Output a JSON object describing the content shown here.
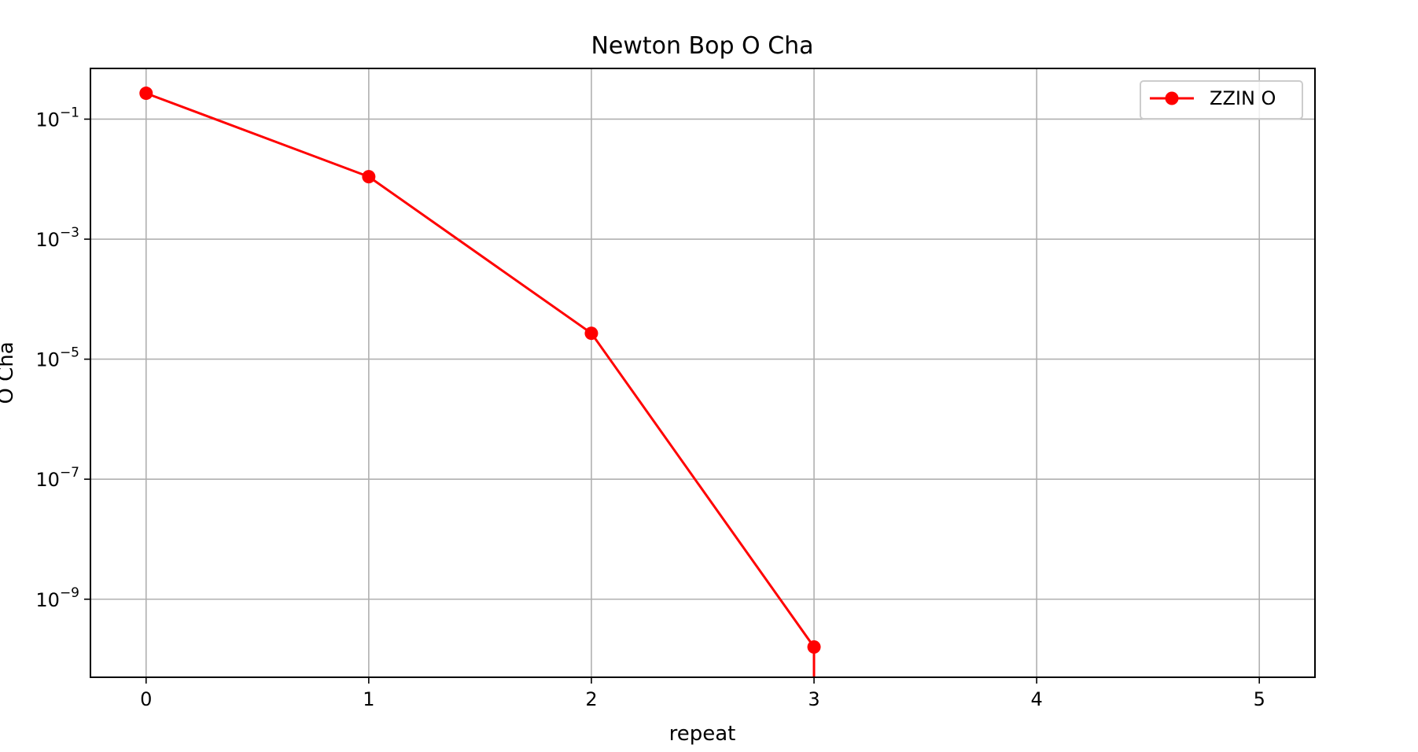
{
  "chart_data": {
    "type": "line",
    "title": "Newton Bop O Cha",
    "xlabel": "repeat",
    "ylabel": "O Cha",
    "xscale": "linear",
    "yscale": "log",
    "xlim": [
      -0.25,
      5.25
    ],
    "ylim": [
      5e-11,
      0.7
    ],
    "x_ticks": [
      0,
      1,
      2,
      3,
      4,
      5
    ],
    "x_tick_labels": [
      "0",
      "1",
      "2",
      "3",
      "4",
      "5"
    ],
    "y_ticks": [
      {
        "value": 0.1,
        "base": "10",
        "exponent": "−1"
      },
      {
        "value": 0.001,
        "base": "10",
        "exponent": "−3"
      },
      {
        "value": 1e-05,
        "base": "10",
        "exponent": "−5"
      },
      {
        "value": 1e-07,
        "base": "10",
        "exponent": "−7"
      },
      {
        "value": 1e-09,
        "base": "10",
        "exponent": "−9"
      }
    ],
    "grid": true,
    "legend_position": "top-right",
    "series": [
      {
        "name": "ZZIN O",
        "color": "#ff0000",
        "marker": "circle",
        "x": [
          0,
          1,
          2,
          3
        ],
        "y": [
          0.27,
          0.011,
          2.7e-05,
          1.6e-10
        ],
        "drop_to_zero_after_last": true
      }
    ]
  }
}
